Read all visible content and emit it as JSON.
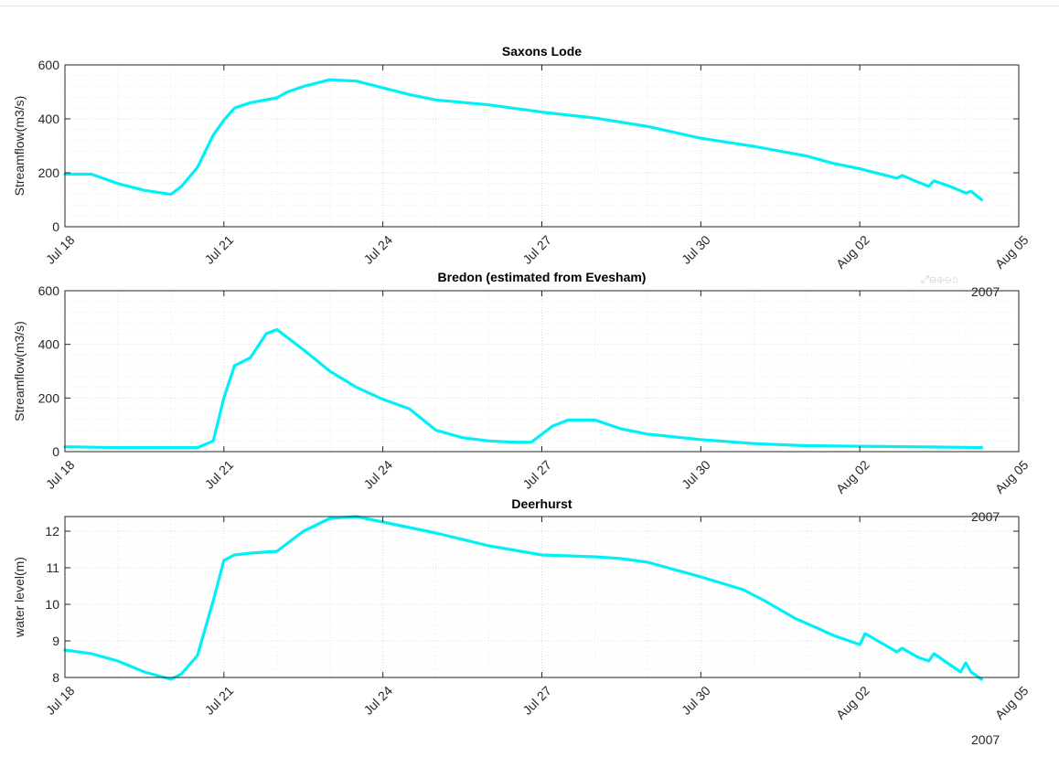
{
  "year_label": "2007",
  "toolbar_glyphs": "⤢⊟⊕⊖⌂",
  "colors": {
    "line": "#00f0f5",
    "axis": "#262626",
    "grid": "#dcdcdc",
    "minor_grid": "#ececec"
  },
  "chart_data": [
    {
      "type": "line",
      "title": "Saxons Lode",
      "ylabel": "Streamflow(m3/s)",
      "xlim": [
        "2007-07-18",
        "2007-08-05"
      ],
      "ylim": [
        0,
        600
      ],
      "yticks": [
        0,
        200,
        400,
        600
      ],
      "xtick_labels": [
        "Jul 18",
        "Jul 21",
        "Jul 24",
        "Jul 27",
        "Jul 30",
        "Aug 02",
        "Aug 05"
      ],
      "grid": true,
      "series": [
        {
          "x": [
            "2007-07-18",
            "2007-07-18T12:00",
            "2007-07-19",
            "2007-07-19T12:00",
            "2007-07-20",
            "2007-07-20T04:48",
            "2007-07-20T12:00",
            "2007-07-20T19:12",
            "2007-07-21",
            "2007-07-21T04:48",
            "2007-07-21T12:00",
            "2007-07-22",
            "2007-07-22T04:48",
            "2007-07-22T12:00",
            "2007-07-23",
            "2007-07-23T12:00",
            "2007-07-24",
            "2007-07-24T12:00",
            "2007-07-25",
            "2007-07-26",
            "2007-07-27",
            "2007-07-28",
            "2007-07-29",
            "2007-07-30",
            "2007-07-31",
            "2007-08-01",
            "2007-08-01T12:00",
            "2007-08-02",
            "2007-08-02T02:24",
            "2007-08-02T12:00",
            "2007-08-02T16:48",
            "2007-08-02T19:12",
            "2007-08-03T02:24",
            "2007-08-03T07:12",
            "2007-08-03T09:36",
            "2007-08-03T16:48",
            "2007-08-04",
            "2007-08-04T02:24",
            "2007-08-04T07:12"
          ],
          "y": [
            195,
            195,
            160,
            135,
            120,
            150,
            220,
            340,
            395,
            440,
            460,
            478,
            500,
            520,
            545,
            540,
            515,
            490,
            470,
            452,
            425,
            403,
            372,
            328,
            298,
            262,
            235,
            215,
            210,
            190,
            180,
            190,
            165,
            150,
            170,
            150,
            125,
            132,
            100
          ]
        }
      ]
    },
    {
      "type": "line",
      "title": "Bredon (estimated from Evesham)",
      "ylabel": "Streamflow(m3/s)",
      "xlim": [
        "2007-07-18",
        "2007-08-05"
      ],
      "ylim": [
        0,
        600
      ],
      "yticks": [
        0,
        200,
        400,
        600
      ],
      "xtick_labels": [
        "Jul 18",
        "Jul 21",
        "Jul 24",
        "Jul 27",
        "Jul 30",
        "Aug 02",
        "Aug 05"
      ],
      "grid": true,
      "series": [
        {
          "x": [
            "2007-07-18",
            "2007-07-19",
            "2007-07-20",
            "2007-07-20T12:00",
            "2007-07-20T19:12",
            "2007-07-21",
            "2007-07-21T04:48",
            "2007-07-21T12:00",
            "2007-07-21T19:12",
            "2007-07-22",
            "2007-07-22T12:00",
            "2007-07-23",
            "2007-07-23T12:00",
            "2007-07-24",
            "2007-07-24T12:00",
            "2007-07-25",
            "2007-07-25T12:00",
            "2007-07-26",
            "2007-07-26T12:00",
            "2007-07-26T19:12",
            "2007-07-27T04:48",
            "2007-07-27T12:00",
            "2007-07-28",
            "2007-07-28T12:00",
            "2007-07-29",
            "2007-07-30",
            "2007-07-31",
            "2007-08-01",
            "2007-08-02",
            "2007-08-03",
            "2007-08-04",
            "2007-08-04T07:12"
          ],
          "y": [
            18,
            15,
            15,
            15,
            40,
            200,
            320,
            350,
            440,
            455,
            380,
            300,
            240,
            195,
            160,
            80,
            52,
            40,
            35,
            35,
            95,
            118,
            118,
            85,
            65,
            45,
            30,
            22,
            20,
            18,
            16,
            15
          ]
        }
      ]
    },
    {
      "type": "line",
      "title": "Deerhurst",
      "ylabel": "water level(m)",
      "xlim": [
        "2007-07-18",
        "2007-08-05"
      ],
      "ylim": [
        8,
        12.4
      ],
      "yticks": [
        8,
        9,
        10,
        11,
        12
      ],
      "xtick_labels": [
        "Jul 18",
        "Jul 21",
        "Jul 24",
        "Jul 27",
        "Jul 30",
        "Aug 02",
        "Aug 05"
      ],
      "grid": true,
      "series": [
        {
          "x": [
            "2007-07-18",
            "2007-07-18T12:00",
            "2007-07-19",
            "2007-07-19T12:00",
            "2007-07-20",
            "2007-07-20T04:48",
            "2007-07-20T12:00",
            "2007-07-20T19:12",
            "2007-07-21",
            "2007-07-21T04:48",
            "2007-07-21T12:00",
            "2007-07-22",
            "2007-07-22T12:00",
            "2007-07-23",
            "2007-07-23T12:00",
            "2007-07-24",
            "2007-07-25",
            "2007-07-26",
            "2007-07-27",
            "2007-07-28",
            "2007-07-28T12:00",
            "2007-07-29",
            "2007-07-30",
            "2007-07-30T19:12",
            "2007-07-31T04:48",
            "2007-07-31T19:12",
            "2007-08-01T04:48",
            "2007-08-01T12:00",
            "2007-08-01T19:12",
            "2007-08-02",
            "2007-08-02T02:24",
            "2007-08-02T16:48",
            "2007-08-02T19:12",
            "2007-08-03T02:24",
            "2007-08-03T07:12",
            "2007-08-03T09:36",
            "2007-08-03T21:36",
            "2007-08-04",
            "2007-08-04T02:24",
            "2007-08-04T07:12"
          ],
          "y": [
            8.75,
            8.65,
            8.45,
            8.15,
            7.95,
            8.1,
            8.6,
            10.1,
            11.2,
            11.35,
            11.4,
            11.45,
            12.0,
            12.35,
            12.4,
            12.25,
            11.95,
            11.6,
            11.35,
            11.3,
            11.25,
            11.15,
            10.75,
            10.4,
            10.1,
            9.6,
            9.35,
            9.15,
            9.0,
            8.9,
            9.2,
            8.7,
            8.8,
            8.55,
            8.45,
            8.65,
            8.15,
            8.4,
            8.15,
            7.95
          ]
        }
      ]
    }
  ]
}
